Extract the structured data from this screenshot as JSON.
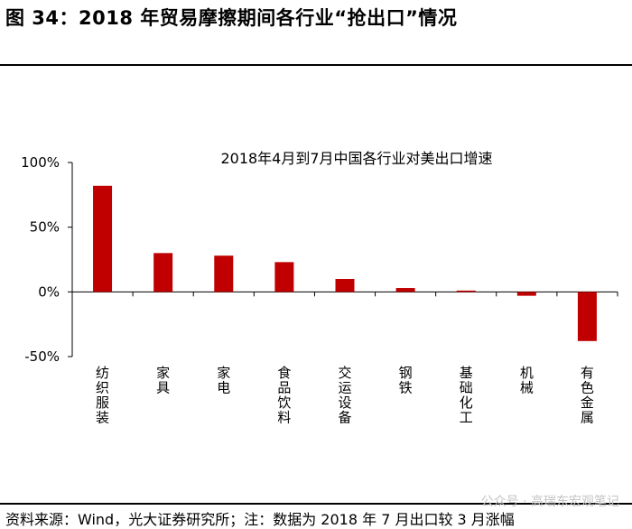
{
  "figure": {
    "title": "图 34：2018 年贸易摩擦期间各行业“抢出口”情况",
    "source": "资料来源：Wind，光大证券研究所；注：数据为 2018 年 7 月出口较 3 月涨幅",
    "watermark": "公众号 · 高瑞东宏观笔记"
  },
  "chart_data": {
    "type": "bar",
    "title": "2018年4月到7月中国各行业对美出口增速",
    "categories": [
      "纺织服装",
      "家具",
      "家电",
      "食品饮料",
      "交运设备",
      "钢铁",
      "基础化工",
      "机械",
      "有色金属"
    ],
    "values": [
      82,
      30,
      28,
      23,
      10,
      3,
      1,
      -3,
      -38
    ],
    "yticks": [
      "100%",
      "50%",
      "0%",
      "-50%"
    ],
    "ylim": [
      -50,
      100
    ],
    "xlabel": "",
    "ylabel": "",
    "grid": false,
    "legend": "none",
    "bar_color": "#c00000"
  }
}
